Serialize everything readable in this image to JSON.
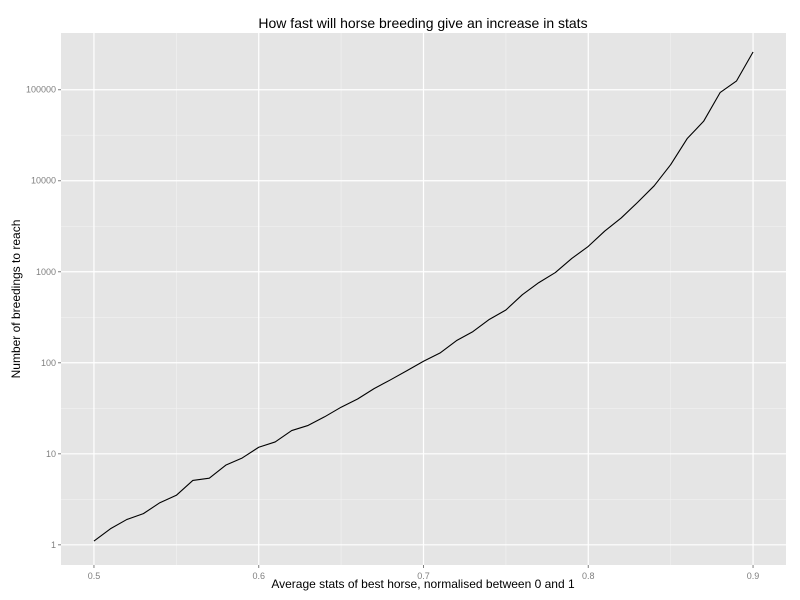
{
  "chart_data": {
    "type": "line",
    "title": "How fast will horse breeding give an increase in stats",
    "xlabel": "Average stats of best horse, normalised between 0 and 1",
    "ylabel": "Number of breedings to reach",
    "xlim": [
      0.48,
      0.92
    ],
    "ylim": [
      0.6,
      420000
    ],
    "y_scale": "log",
    "grid": true,
    "panel_background": "#e5e5e5",
    "grid_color": "#ffffff",
    "line_color": "#000000",
    "x_ticks": [
      0.5,
      0.6,
      0.7,
      0.8,
      0.9
    ],
    "x_tick_labels": [
      "0.5",
      "0.6",
      "0.7",
      "0.8",
      "0.9"
    ],
    "y_ticks": [
      1,
      10,
      100,
      1000,
      10000,
      100000
    ],
    "y_tick_labels": [
      "1",
      "10",
      "100",
      "1000",
      "10000",
      "100000"
    ],
    "series": [
      {
        "x": [
          0.5,
          0.51,
          0.52,
          0.53,
          0.54,
          0.55,
          0.56,
          0.57,
          0.58,
          0.59,
          0.6,
          0.61,
          0.62,
          0.63,
          0.64,
          0.65,
          0.66,
          0.67,
          0.68,
          0.69,
          0.7,
          0.71,
          0.72,
          0.73,
          0.74,
          0.75,
          0.76,
          0.77,
          0.78,
          0.79,
          0.8,
          0.81,
          0.82,
          0.83,
          0.84,
          0.85,
          0.86,
          0.87,
          0.88,
          0.89,
          0.9
        ],
        "y": [
          1.1,
          1.5,
          1.9,
          2.2,
          2.9,
          3.5,
          5.1,
          5.4,
          7.5,
          9.0,
          11.8,
          13.5,
          18.0,
          20.5,
          25.5,
          32.5,
          40,
          52,
          65,
          82,
          104,
          128,
          175,
          220,
          300,
          380,
          560,
          760,
          980,
          1400,
          1900,
          2800,
          3900,
          5800,
          8800,
          15000,
          29000,
          45000,
          93000,
          125000,
          260000
        ]
      }
    ]
  }
}
